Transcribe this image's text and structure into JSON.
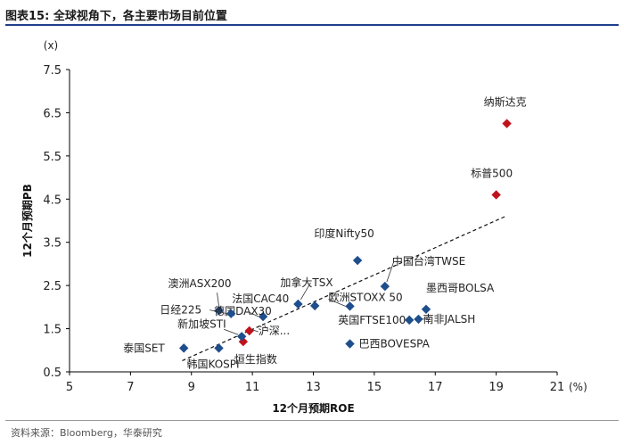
{
  "page_title": "图表15:   全球视角下，各主要市场目前位置",
  "source": "资料来源：Bloomberg，华泰研究",
  "chart_data": {
    "type": "scatter",
    "title": "图表15:   全球视角下，各主要市场目前位置",
    "xlabel": "12个月预期ROE",
    "ylabel": "12个月预期PB",
    "x_unit": "(%)",
    "y_unit": "(x)",
    "xlim": [
      5,
      21
    ],
    "ylim": [
      0.5,
      7.5
    ],
    "xticks": [
      "5",
      "7",
      "9",
      "11",
      "13",
      "15",
      "17",
      "19",
      "21"
    ],
    "yticks": [
      "0.5",
      "1.5",
      "2.5",
      "3.5",
      "4.5",
      "5.5",
      "6.5",
      "7.5"
    ],
    "trendline": {
      "style": "dashed",
      "x": [
        8.7,
        19.3
      ],
      "y": [
        0.76,
        4.1
      ]
    },
    "colors": {
      "blue": "#1f4e8c",
      "red": "#c0121a"
    },
    "points": [
      {
        "name": "纳斯达克",
        "x": 19.35,
        "y": 6.25,
        "color": "red"
      },
      {
        "name": "标普500",
        "x": 19.0,
        "y": 4.6,
        "color": "red"
      },
      {
        "name": "沪深...",
        "x": 10.9,
        "y": 1.45,
        "color": "red"
      },
      {
        "name": "恒生指数",
        "x": 10.7,
        "y": 1.2,
        "color": "red"
      },
      {
        "name": "印度Nifty50",
        "x": 14.45,
        "y": 3.08,
        "color": "blue"
      },
      {
        "name": "中国台湾TWSE",
        "x": 15.35,
        "y": 2.48,
        "color": "blue"
      },
      {
        "name": "墨西哥BOLSA",
        "x": 16.7,
        "y": 1.95,
        "color": "blue"
      },
      {
        "name": "欧洲STOXX 50",
        "x": 14.2,
        "y": 2.02,
        "color": "blue"
      },
      {
        "name": "英国FTSE100",
        "x": 16.15,
        "y": 1.7,
        "color": "blue"
      },
      {
        "name": "南非JALSH",
        "x": 16.45,
        "y": 1.72,
        "color": "blue"
      },
      {
        "name": "巴西BOVESPA",
        "x": 14.2,
        "y": 1.15,
        "color": "blue"
      },
      {
        "name": "加拿大TSX",
        "x": 12.5,
        "y": 2.07,
        "color": "blue"
      },
      {
        "name": "澳洲ASX200",
        "x": 9.9,
        "y": 1.92,
        "color": "blue"
      },
      {
        "name": "法国CAC40",
        "x": 13.05,
        "y": 2.03,
        "color": "blue"
      },
      {
        "name": "德国DAX30",
        "x": 11.35,
        "y": 1.78,
        "color": "blue"
      },
      {
        "name": "日经225",
        "x": 10.3,
        "y": 1.85,
        "color": "blue"
      },
      {
        "name": "新加坡STI",
        "x": 10.65,
        "y": 1.32,
        "color": "blue"
      },
      {
        "name": "泰国SET",
        "x": 8.75,
        "y": 1.05,
        "color": "blue"
      },
      {
        "name": "韩国KOSPI",
        "x": 9.9,
        "y": 1.05,
        "color": "blue"
      }
    ]
  }
}
